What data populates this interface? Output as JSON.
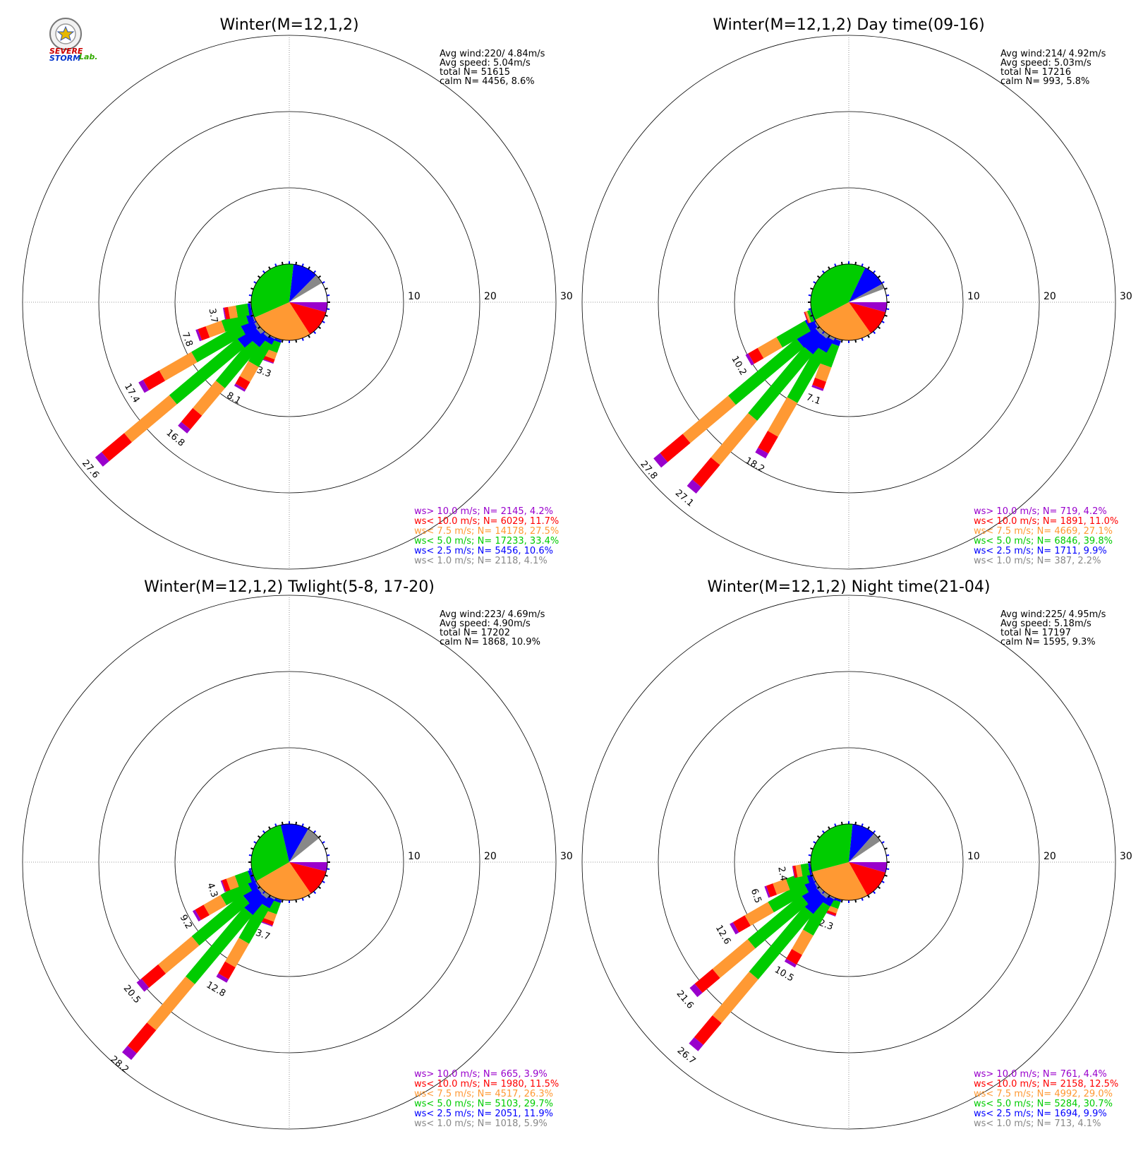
{
  "logo": {
    "text_line1": "SEVERE",
    "text_line2": "STORM",
    "text_lab": "Lab."
  },
  "colors": {
    "gt10": "#9900cc",
    "lt10": "#ff0000",
    "lt7_5": "#ff9933",
    "lt5": "#00cc00",
    "lt2_5": "#0000ff",
    "lt1": "#888888"
  },
  "chart_data": [
    {
      "type": "wind-rose",
      "title": "Winter(M=12,1,2)",
      "stats": [
        "Avg wind:220/ 4.84m/s",
        "Avg speed: 5.04m/s",
        "total N=      51615",
        "calm N=   4456,   8.6%"
      ],
      "rings": [
        10,
        20,
        30
      ],
      "ring_labels": [
        "10",
        "20",
        "30"
      ],
      "pie_percent": [
        {
          "cls": "gt10",
          "value": 4.2
        },
        {
          "cls": "lt10",
          "value": 11.7
        },
        {
          "cls": "lt7_5",
          "value": 27.5
        },
        {
          "cls": "lt5",
          "value": 33.4
        },
        {
          "cls": "lt2_5",
          "value": 10.6
        },
        {
          "cls": "lt1",
          "value": 4.1
        }
      ],
      "spokes": [
        {
          "dir": 200,
          "total": 3.3,
          "label": "3.3"
        },
        {
          "dir": 210,
          "total": 8.1,
          "label": "8.1"
        },
        {
          "dir": 220,
          "total": 16.8,
          "label": "16.8"
        },
        {
          "dir": 230,
          "total": 27.6,
          "label": "27.6"
        },
        {
          "dir": 240,
          "total": 17.4,
          "label": "17.4"
        },
        {
          "dir": 250,
          "total": 7.8,
          "label": "7.8"
        },
        {
          "dir": 260,
          "total": 3.7,
          "label": "3.7"
        }
      ],
      "legend": [
        {
          "cls": "gt10",
          "text": "ws> 10.0 m/s; N=  2145,  4.2%"
        },
        {
          "cls": "lt10",
          "text": "ws< 10.0 m/s; N=  6029, 11.7%"
        },
        {
          "cls": "lt7_5",
          "text": "ws<  7.5 m/s; N= 14178, 27.5%"
        },
        {
          "cls": "lt5",
          "text": "ws<  5.0 m/s; N= 17233, 33.4%"
        },
        {
          "cls": "lt2_5",
          "text": "ws<  2.5 m/s; N=  5456, 10.6%"
        },
        {
          "cls": "lt1",
          "text": "ws<  1.0 m/s; N=  2118,  4.1%"
        }
      ]
    },
    {
      "type": "wind-rose",
      "title": "Winter(M=12,1,2) Day time(09-16)",
      "stats": [
        "Avg wind:214/ 4.92m/s",
        "Avg speed: 5.03m/s",
        "total N=      17216",
        "calm N=    993,   5.8%"
      ],
      "rings": [
        10,
        20,
        30
      ],
      "ring_labels": [
        "10",
        "20",
        "30"
      ],
      "pie_percent": [
        {
          "cls": "gt10",
          "value": 4.2
        },
        {
          "cls": "lt10",
          "value": 11.0
        },
        {
          "cls": "lt7_5",
          "value": 27.1
        },
        {
          "cls": "lt5",
          "value": 39.8
        },
        {
          "cls": "lt2_5",
          "value": 9.9
        },
        {
          "cls": "lt1",
          "value": 2.2
        }
      ],
      "spokes": [
        {
          "dir": 200,
          "total": 7.1,
          "label": "7.1"
        },
        {
          "dir": 210,
          "total": 18.2,
          "label": "18.2"
        },
        {
          "dir": 220,
          "total": 27.1,
          "label": "27.1"
        },
        {
          "dir": 230,
          "total": 27.8,
          "label": "27.8"
        },
        {
          "dir": 240,
          "total": 10.2,
          "label": "10.2"
        },
        {
          "dir": 250,
          "total": 1.0,
          "label": ""
        }
      ],
      "legend": [
        {
          "cls": "gt10",
          "text": "ws> 10.0 m/s; N=   719,  4.2%"
        },
        {
          "cls": "lt10",
          "text": "ws< 10.0 m/s; N=  1891, 11.0%"
        },
        {
          "cls": "lt7_5",
          "text": "ws<  7.5 m/s; N=  4669, 27.1%"
        },
        {
          "cls": "lt5",
          "text": "ws<  5.0 m/s; N=  6846, 39.8%"
        },
        {
          "cls": "lt2_5",
          "text": "ws<  2.5 m/s; N=  1711,  9.9%"
        },
        {
          "cls": "lt1",
          "text": "ws<  1.0 m/s; N=   387,  2.2%"
        }
      ]
    },
    {
      "type": "wind-rose",
      "title": "Winter(M=12,1,2) Twlight(5-8, 17-20)",
      "stats": [
        "Avg wind:223/ 4.69m/s",
        "Avg speed: 4.90m/s",
        "total N=      17202",
        "calm N=   1868,  10.9%"
      ],
      "rings": [
        10,
        20,
        30
      ],
      "ring_labels": [
        "10",
        "20",
        "30"
      ],
      "pie_percent": [
        {
          "cls": "gt10",
          "value": 3.9
        },
        {
          "cls": "lt10",
          "value": 11.5
        },
        {
          "cls": "lt7_5",
          "value": 26.3
        },
        {
          "cls": "lt5",
          "value": 29.7
        },
        {
          "cls": "lt2_5",
          "value": 11.9
        },
        {
          "cls": "lt1",
          "value": 5.9
        }
      ],
      "spokes": [
        {
          "dir": 200,
          "total": 3.7,
          "label": "3.7"
        },
        {
          "dir": 210,
          "total": 12.8,
          "label": "12.8"
        },
        {
          "dir": 220,
          "total": 28.2,
          "label": "28.2"
        },
        {
          "dir": 230,
          "total": 20.5,
          "label": "20.5"
        },
        {
          "dir": 240,
          "total": 9.2,
          "label": "9.2"
        },
        {
          "dir": 250,
          "total": 4.3,
          "label": "4.3"
        }
      ],
      "legend": [
        {
          "cls": "gt10",
          "text": "ws> 10.0 m/s; N=   665,  3.9%"
        },
        {
          "cls": "lt10",
          "text": "ws< 10.0 m/s; N=  1980, 11.5%"
        },
        {
          "cls": "lt7_5",
          "text": "ws<  7.5 m/s; N=  4517, 26.3%"
        },
        {
          "cls": "lt5",
          "text": "ws<  5.0 m/s; N=  5103, 29.7%"
        },
        {
          "cls": "lt2_5",
          "text": "ws<  2.5 m/s; N=  2051, 11.9%"
        },
        {
          "cls": "lt1",
          "text": "ws<  1.0 m/s; N=  1018,  5.9%"
        }
      ]
    },
    {
      "type": "wind-rose",
      "title": "Winter(M=12,1,2) Night time(21-04)",
      "stats": [
        "Avg wind:225/ 4.95m/s",
        "Avg speed: 5.18m/s",
        "total N=      17197",
        "calm N=   1595,   9.3%"
      ],
      "rings": [
        10,
        20,
        30
      ],
      "ring_labels": [
        "10",
        "20",
        "30"
      ],
      "pie_percent": [
        {
          "cls": "gt10",
          "value": 4.4
        },
        {
          "cls": "lt10",
          "value": 12.5
        },
        {
          "cls": "lt7_5",
          "value": 29.0
        },
        {
          "cls": "lt5",
          "value": 30.7
        },
        {
          "cls": "lt2_5",
          "value": 9.9
        },
        {
          "cls": "lt1",
          "value": 4.1
        }
      ],
      "spokes": [
        {
          "dir": 200,
          "total": 2.3,
          "label": "2.3"
        },
        {
          "dir": 210,
          "total": 10.5,
          "label": "10.5"
        },
        {
          "dir": 220,
          "total": 26.7,
          "label": "26.7"
        },
        {
          "dir": 230,
          "total": 21.6,
          "label": "21.6"
        },
        {
          "dir": 240,
          "total": 12.6,
          "label": "12.6"
        },
        {
          "dir": 250,
          "total": 6.5,
          "label": "6.5"
        },
        {
          "dir": 260,
          "total": 2.4,
          "label": "2.4"
        }
      ],
      "legend": [
        {
          "cls": "gt10",
          "text": "ws> 10.0 m/s; N=   761,  4.4%"
        },
        {
          "cls": "lt10",
          "text": "ws< 10.0 m/s; N=  2158, 12.5%"
        },
        {
          "cls": "lt7_5",
          "text": "ws<  7.5 m/s; N=  4992, 29.0%"
        },
        {
          "cls": "lt5",
          "text": "ws<  5.0 m/s; N=  5284, 30.7%"
        },
        {
          "cls": "lt2_5",
          "text": "ws<  2.5 m/s; N=  1694,  9.9%"
        },
        {
          "cls": "lt1",
          "text": "ws<  1.0 m/s; N=   713,  4.1%"
        }
      ]
    }
  ]
}
